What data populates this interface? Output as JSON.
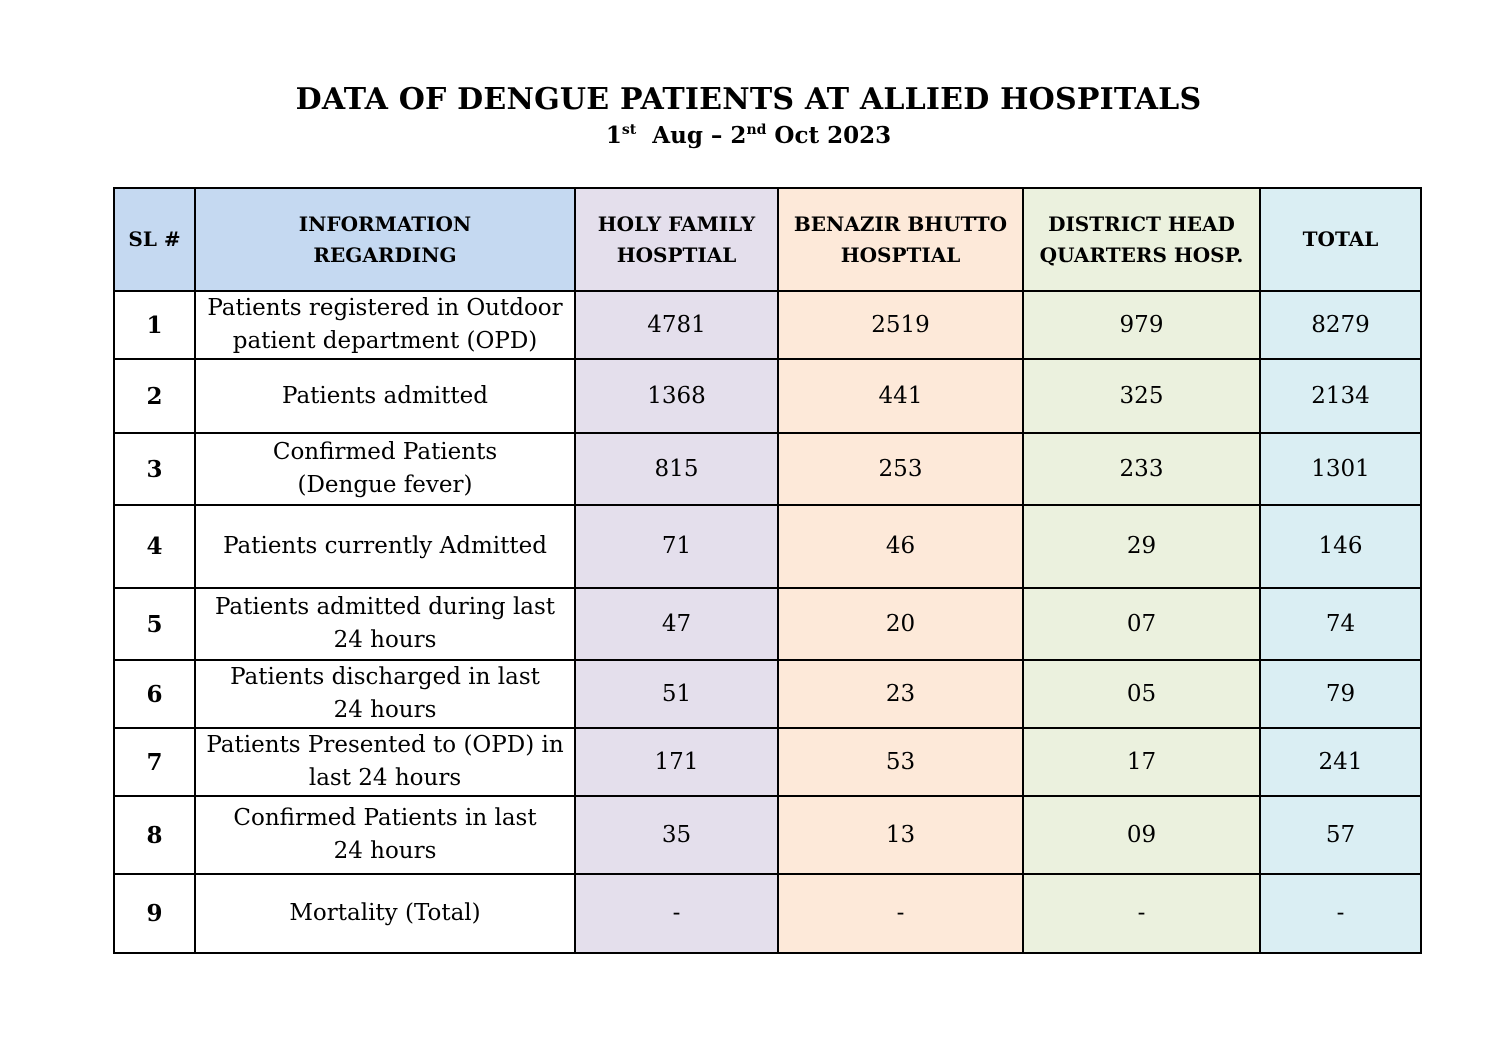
{
  "title": "DATA OF DENGUE PATIENTS AT ALLIED HOSPITALS",
  "subtitle": {
    "start_day": "1",
    "start_sup": "st",
    "start_month": "Aug – 2",
    "end_sup": "nd",
    "end_rest": "Oct  2023"
  },
  "table": {
    "headers": {
      "sl": "SL #",
      "info_line1": "INFORMATION",
      "info_line2": "REGARDING",
      "hf_line1": "HOLY FAMILY",
      "hf_line2": "HOSPTIAL",
      "bb_line1": "BENAZIR BHUTTO",
      "bb_line2": "HOSPTIAL",
      "dh_line1": "DISTRICT HEAD",
      "dh_line2": "QUARTERS HOSP.",
      "total": "TOTAL"
    },
    "rows": [
      {
        "sl": "1",
        "info1": "Patients registered in Outdoor",
        "info2": "patient department (OPD)",
        "hf": "4781",
        "bb": "2519",
        "dh": "979",
        "total": "8279"
      },
      {
        "sl": "2",
        "info1": "Patients admitted",
        "info2": "",
        "hf": "1368",
        "bb": "441",
        "dh": "325",
        "total": "2134"
      },
      {
        "sl": "3",
        "info1": "Confirmed Patients",
        "info2": "(Dengue fever)",
        "hf": "815",
        "bb": "253",
        "dh": "233",
        "total": "1301"
      },
      {
        "sl": "4",
        "info1": "Patients currently Admitted",
        "info2": "",
        "hf": "71",
        "bb": "46",
        "dh": "29",
        "total": "146"
      },
      {
        "sl": "5",
        "info1": "Patients admitted during last",
        "info2": "24 hours",
        "hf": "47",
        "bb": "20",
        "dh": "07",
        "total": "74"
      },
      {
        "sl": "6",
        "info1": "Patients discharged in last",
        "info2": "24 hours",
        "hf": "51",
        "bb": "23",
        "dh": "05",
        "total": "79"
      },
      {
        "sl": "7",
        "info1": "Patients Presented to (OPD) in",
        "info2": "last 24 hours",
        "hf": "171",
        "bb": "53",
        "dh": "17",
        "total": "241"
      },
      {
        "sl": "8",
        "info1": "Confirmed Patients in last",
        "info2": "24 hours",
        "hf": "35",
        "bb": "13",
        "dh": "09",
        "total": "57"
      },
      {
        "sl": "9",
        "info1": "Mortality (Total)",
        "info2": "",
        "hf": "-",
        "bb": "-",
        "dh": "-",
        "total": "-"
      }
    ]
  },
  "colors": {
    "header_blue": "#c5d9f1",
    "holy_family": "#e4dfec",
    "benazir_bhutto": "#fde9d9",
    "district_hq": "#ebf1de",
    "total": "#daeef3"
  }
}
